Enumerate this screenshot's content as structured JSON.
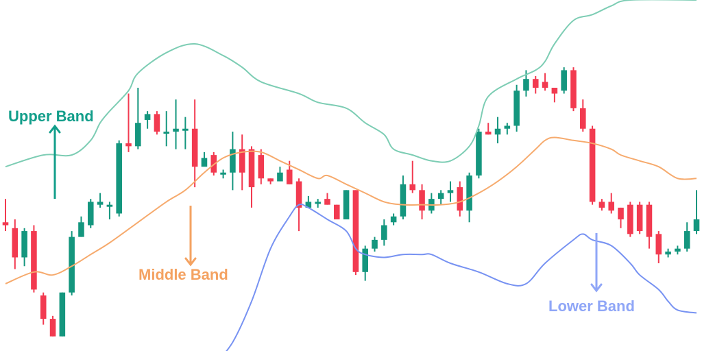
{
  "chart_data": {
    "type": "candlestick",
    "annotations": [
      {
        "text": "Upper Band",
        "color": "#129e8a",
        "x": 0.5,
        "y": 0.655
      },
      {
        "text": "Middle Band",
        "color": "#f4a261",
        "x": 16.5,
        "y": 0.225
      },
      {
        "text": "Lower Band",
        "color": "#8fa6f7",
        "x": 56.5,
        "y": 0.13
      }
    ],
    "colors": {
      "up": "#14967e",
      "down": "#f23a50",
      "upper": "#7dcdb4",
      "middle": "#f6aa6d",
      "lower": "#7792f2"
    },
    "candles": [
      [
        0.39,
        0.38,
        0.47,
        0.36
      ],
      [
        0.37,
        0.27,
        0.4,
        0.23
      ],
      [
        0.27,
        0.36,
        0.37,
        0.24
      ],
      [
        0.36,
        0.16,
        0.38,
        0.15
      ],
      [
        0.14,
        0.06,
        0.15,
        0.04
      ],
      [
        0.06,
        0.0,
        0.07,
        0.0
      ],
      [
        0.0,
        0.15,
        0.15,
        0.0
      ],
      [
        0.15,
        0.34,
        0.36,
        0.14
      ],
      [
        0.34,
        0.39,
        0.41,
        0.34
      ],
      [
        0.38,
        0.46,
        0.47,
        0.37
      ],
      [
        0.45,
        0.46,
        0.49,
        0.44
      ],
      [
        0.45,
        0.45,
        0.46,
        0.4
      ],
      [
        0.42,
        0.66,
        0.67,
        0.41
      ],
      [
        0.66,
        0.65,
        0.83,
        0.63
      ],
      [
        0.65,
        0.73,
        0.85,
        0.64
      ],
      [
        0.74,
        0.76,
        0.77,
        0.71
      ],
      [
        0.76,
        0.7,
        0.77,
        0.69
      ],
      [
        0.7,
        0.7,
        0.77,
        0.65
      ],
      [
        0.7,
        0.71,
        0.81,
        0.64
      ],
      [
        0.71,
        0.71,
        0.75,
        0.64
      ],
      [
        0.71,
        0.58,
        0.81,
        0.51
      ],
      [
        0.58,
        0.61,
        0.63,
        0.6
      ],
      [
        0.62,
        0.56,
        0.63,
        0.55
      ],
      [
        0.56,
        0.56,
        0.57,
        0.54
      ],
      [
        0.56,
        0.64,
        0.7,
        0.5
      ],
      [
        0.64,
        0.56,
        0.69,
        0.5
      ],
      [
        0.64,
        0.51,
        0.65,
        0.44
      ],
      [
        0.62,
        0.54,
        0.64,
        0.52
      ],
      [
        0.54,
        0.53,
        0.54,
        0.52
      ],
      [
        0.53,
        0.56,
        0.58,
        0.53
      ],
      [
        0.57,
        0.52,
        0.6,
        0.52
      ],
      [
        0.53,
        0.44,
        0.54,
        0.36
      ],
      [
        0.44,
        0.46,
        0.48,
        0.44
      ],
      [
        0.46,
        0.46,
        0.47,
        0.44
      ],
      [
        0.47,
        0.45,
        0.49,
        0.45
      ],
      [
        0.45,
        0.4,
        0.45,
        0.4
      ],
      [
        0.4,
        0.5,
        0.5,
        0.4
      ],
      [
        0.5,
        0.22,
        0.5,
        0.21
      ],
      [
        0.22,
        0.3,
        0.31,
        0.19
      ],
      [
        0.3,
        0.33,
        0.34,
        0.29
      ],
      [
        0.33,
        0.38,
        0.4,
        0.31
      ],
      [
        0.39,
        0.41,
        0.42,
        0.38
      ],
      [
        0.41,
        0.52,
        0.55,
        0.4
      ],
      [
        0.52,
        0.5,
        0.6,
        0.49
      ],
      [
        0.5,
        0.43,
        0.52,
        0.4
      ],
      [
        0.43,
        0.47,
        0.49,
        0.42
      ],
      [
        0.47,
        0.49,
        0.5,
        0.45
      ],
      [
        0.49,
        0.5,
        0.53,
        0.46
      ],
      [
        0.51,
        0.43,
        0.53,
        0.41
      ],
      [
        0.43,
        0.55,
        0.56,
        0.39
      ],
      [
        0.55,
        0.7,
        0.71,
        0.54
      ],
      [
        0.7,
        0.69,
        0.73,
        0.69
      ],
      [
        0.69,
        0.71,
        0.75,
        0.66
      ],
      [
        0.71,
        0.72,
        0.73,
        0.69
      ],
      [
        0.72,
        0.84,
        0.86,
        0.7
      ],
      [
        0.84,
        0.88,
        0.91,
        0.82
      ],
      [
        0.88,
        0.85,
        0.89,
        0.83
      ],
      [
        0.87,
        0.85,
        0.9,
        0.84
      ],
      [
        0.85,
        0.83,
        0.85,
        0.8
      ],
      [
        0.84,
        0.91,
        0.92,
        0.83
      ],
      [
        0.91,
        0.78,
        0.92,
        0.77
      ],
      [
        0.78,
        0.71,
        0.81,
        0.7
      ],
      [
        0.71,
        0.46,
        0.72,
        0.45
      ],
      [
        0.46,
        0.44,
        0.47,
        0.43
      ],
      [
        0.46,
        0.43,
        0.49,
        0.42
      ],
      [
        0.44,
        0.4,
        0.44,
        0.37
      ],
      [
        0.45,
        0.35,
        0.46,
        0.34
      ],
      [
        0.45,
        0.36,
        0.46,
        0.35
      ],
      [
        0.45,
        0.34,
        0.46,
        0.3
      ],
      [
        0.35,
        0.28,
        0.36,
        0.25
      ],
      [
        0.28,
        0.29,
        0.3,
        0.27
      ],
      [
        0.29,
        0.3,
        0.31,
        0.28
      ],
      [
        0.3,
        0.36,
        0.39,
        0.29
      ],
      [
        0.36,
        0.4,
        0.5,
        0.35
      ]
    ],
    "upper_band": [
      [
        0,
        0.58
      ],
      [
        4,
        0.62
      ],
      [
        7,
        0.62
      ],
      [
        9,
        0.67
      ],
      [
        10,
        0.73
      ],
      [
        11,
        0.77
      ],
      [
        13,
        0.84
      ],
      [
        14,
        0.9
      ],
      [
        17,
        0.97
      ],
      [
        20,
        1.0
      ],
      [
        23,
        0.96
      ],
      [
        25,
        0.92
      ],
      [
        27,
        0.87
      ],
      [
        31,
        0.83
      ],
      [
        33,
        0.8
      ],
      [
        36,
        0.78
      ],
      [
        38,
        0.73
      ],
      [
        40,
        0.69
      ],
      [
        41,
        0.64
      ],
      [
        43,
        0.62
      ],
      [
        45,
        0.6
      ],
      [
        47,
        0.6
      ],
      [
        49,
        0.65
      ],
      [
        50,
        0.72
      ],
      [
        51,
        0.82
      ],
      [
        54,
        0.88
      ],
      [
        56,
        0.91
      ],
      [
        57,
        0.94
      ],
      [
        58,
        1.0
      ],
      [
        60,
        1.08
      ],
      [
        62,
        1.1
      ],
      [
        64,
        1.13
      ],
      [
        66,
        1.15
      ],
      [
        73,
        1.15
      ]
    ],
    "middle_band": [
      [
        0,
        0.18
      ],
      [
        3,
        0.22
      ],
      [
        5,
        0.21
      ],
      [
        7,
        0.24
      ],
      [
        9,
        0.28
      ],
      [
        11,
        0.32
      ],
      [
        14,
        0.39
      ],
      [
        17,
        0.46
      ],
      [
        19,
        0.5
      ],
      [
        21,
        0.56
      ],
      [
        23,
        0.61
      ],
      [
        25,
        0.63
      ],
      [
        27,
        0.63
      ],
      [
        29,
        0.6
      ],
      [
        31,
        0.57
      ],
      [
        33,
        0.54
      ],
      [
        34,
        0.55
      ],
      [
        36,
        0.52
      ],
      [
        38,
        0.49
      ],
      [
        40,
        0.46
      ],
      [
        42,
        0.45
      ],
      [
        44,
        0.45
      ],
      [
        46,
        0.45
      ],
      [
        48,
        0.46
      ],
      [
        50,
        0.49
      ],
      [
        52,
        0.53
      ],
      [
        54,
        0.58
      ],
      [
        56,
        0.64
      ],
      [
        57,
        0.67
      ],
      [
        58,
        0.68
      ],
      [
        60,
        0.67
      ],
      [
        62,
        0.66
      ],
      [
        64,
        0.64
      ],
      [
        65,
        0.62
      ],
      [
        67,
        0.6
      ],
      [
        69,
        0.58
      ],
      [
        71,
        0.54
      ],
      [
        73,
        0.54
      ]
    ],
    "lower_band": [
      [
        22,
        -0.1
      ],
      [
        24,
        -0.02
      ],
      [
        26,
        0.12
      ],
      [
        28,
        0.3
      ],
      [
        30,
        0.41
      ],
      [
        31,
        0.45
      ],
      [
        32,
        0.44
      ],
      [
        34,
        0.4
      ],
      [
        36,
        0.36
      ],
      [
        37,
        0.3
      ],
      [
        38,
        0.28
      ],
      [
        40,
        0.27
      ],
      [
        42,
        0.28
      ],
      [
        44,
        0.28
      ],
      [
        45,
        0.28
      ],
      [
        47,
        0.25
      ],
      [
        50,
        0.22
      ],
      [
        53,
        0.18
      ],
      [
        55,
        0.18
      ],
      [
        57,
        0.25
      ],
      [
        60,
        0.33
      ],
      [
        61,
        0.35
      ],
      [
        62,
        0.33
      ],
      [
        64,
        0.31
      ],
      [
        66,
        0.25
      ],
      [
        67,
        0.21
      ],
      [
        69,
        0.16
      ],
      [
        70,
        0.12
      ],
      [
        71,
        0.09
      ],
      [
        73,
        0.08
      ]
    ],
    "xlim": [
      0,
      73
    ],
    "ylim": [
      -0.05,
      1.15
    ]
  }
}
